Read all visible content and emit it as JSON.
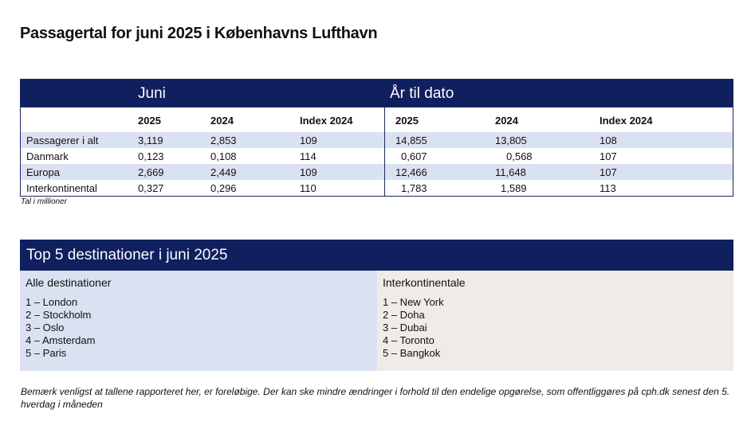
{
  "title": "Passagertal for juni 2025 i Københavns Lufthavn",
  "stats": {
    "group_left": "Juni",
    "group_right": "År til dato",
    "columns": [
      "2025",
      "2024",
      "Index 2024",
      "2025",
      "2024",
      "Index 2024"
    ],
    "rows": [
      {
        "label": "Passagerer i alt",
        "values": [
          "3,119",
          "2,853",
          "109",
          "14,855",
          "13,805",
          "108"
        ]
      },
      {
        "label": "Danmark",
        "values": [
          "0,123",
          "0,108",
          "114",
          "0,607",
          "0,568",
          "107"
        ]
      },
      {
        "label": "Europa",
        "values": [
          "2,669",
          "2,449",
          "109",
          "12,466",
          "11,648",
          "107"
        ]
      },
      {
        "label": "Interkontinental",
        "values": [
          "0,327",
          "0,296",
          "110",
          "1,783",
          "1,589",
          "113"
        ]
      }
    ],
    "unit_note": "Tal i millioner"
  },
  "top5": {
    "title": "Top 5 destinationer i juni 2025",
    "all": {
      "heading": "Alle destinationer",
      "items": [
        "1 – London",
        "2 – Stockholm",
        "3 – Oslo",
        "4 – Amsterdam",
        "5 – Paris"
      ]
    },
    "intercont": {
      "heading": "Interkontinentale",
      "items": [
        "1 – New York",
        "2 – Doha",
        "3 – Dubai",
        "4 – Toronto",
        "5 – Bangkok"
      ]
    }
  },
  "footer": "Bemærk venligst at tallene rapporteret her, er foreløbige. Der kan ske mindre ændringer i forhold til den endelige opgørelse, som offentliggøres på cph.dk senest den 5. hverdag i måneden",
  "colors": {
    "navy": "#101f5e",
    "row_shade": "#dae2f2",
    "panel_right": "#efece8"
  }
}
